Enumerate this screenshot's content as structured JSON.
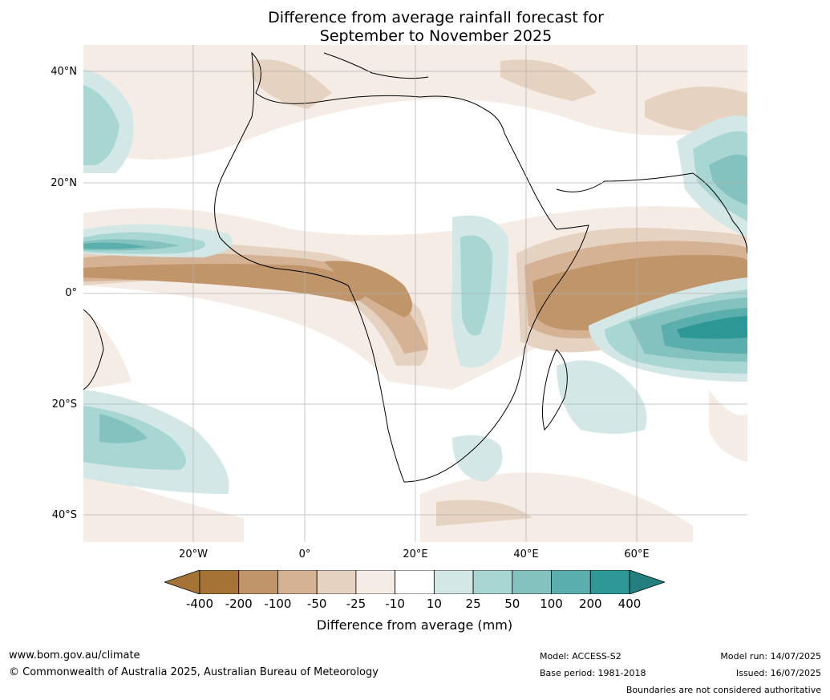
{
  "title": {
    "line1": "Difference from average rainfall forecast for",
    "line2": "September to November 2025"
  },
  "map": {
    "lat_labels": [
      "40°N",
      "20°N",
      "0°",
      "20°S",
      "40°S"
    ],
    "lon_labels": [
      "20°W",
      "0°",
      "20°E",
      "40°E",
      "60°E"
    ]
  },
  "legend": {
    "title": "Difference from average (mm)",
    "labels": [
      "-400",
      "-200",
      "-100",
      "-50",
      "-25",
      "-10",
      "10",
      "25",
      "50",
      "100",
      "200",
      "400"
    ],
    "colors": [
      "#a67337",
      "#a67337",
      "#c0956a",
      "#d5b294",
      "#e5d2c1",
      "#f4ece5",
      "#ffffff",
      "#d3e8e6",
      "#a8d6d3",
      "#84c2bf",
      "#5aaeab",
      "#2e9896",
      "#23807e"
    ]
  },
  "footer": {
    "website": "www.bom.gov.au/climate",
    "copyright": "© Commonwealth of Australia 2025, Australian Bureau of Meteorology",
    "model": "Model: ACCESS-S2",
    "base_period": "Base period: 1981-2018",
    "model_run": "Model run: 14/07/2025",
    "issued": "Issued: 16/07/2025",
    "disclaimer": "Boundaries are not considered authoritative"
  }
}
